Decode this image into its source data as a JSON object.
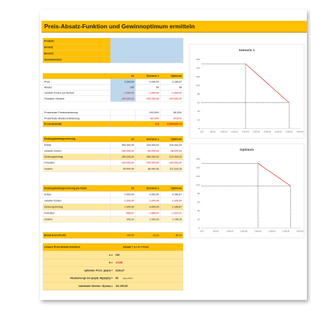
{
  "title": "Preis-Absatz-Funktion und Gewinnoptimum ermitteln",
  "info": {
    "labels": [
      "Produkt:",
      "Einheit:",
      "Bereich:",
      "Verantwortlich:"
    ]
  },
  "tables": [
    {
      "headers": [
        "Ist",
        "Szenario 1",
        "Optimum"
      ],
      "rows": [
        {
          "label": "Preis",
          "cells": [
            "2.000,00",
            "4.000,00",
            "3.166,67"
          ]
        },
        {
          "label": "Absatz",
          "cells": [
            "150",
            "60",
            "98"
          ]
        },
        {
          "label": "variable Kosten pro Einheit",
          "cells": [
            "-1.000,00",
            "-1.000,00",
            "-1.000,00"
          ]
        },
        {
          "label": "Fixkosten Gesamt",
          "cells": [
            "-100.000,00",
            "-100.000,00",
            "-100.000,00"
          ]
        },
        {
          "label": "Prozentuale Preisveränderung",
          "cells": [
            null,
            "100,00%",
            "58,33%"
          ]
        },
        {
          "label": "Prozentuale Absatzveränderung",
          "cells": [
            null,
            "-60,00%",
            "-34,67%"
          ]
        },
        {
          "label": "Preiselastizität",
          "cells": [
            null,
            "-0,6",
            "-0,594285714"
          ]
        }
      ]
    },
    {
      "label": "Deckungsbeitragsrechnung",
      "headers": [
        "Ist",
        "Szenario 1",
        "Optimum"
      ],
      "rows": [
        {
          "label": "Erlöse",
          "cells": [
            "300.000,00",
            "240.000,00",
            "310.333,33"
          ]
        },
        {
          "label": "variable Kosten",
          "cells": [
            "-150.000,00",
            "-60.000,00",
            "-98.000,00"
          ]
        },
        {
          "label": "Deckungsbeitrag",
          "cells": [
            "150.000,00",
            "180.000,00",
            "212.333,33"
          ]
        },
        {
          "label": "Fixkosten",
          "cells": [
            "-100.000,00",
            "-100.000,00",
            "-100.000,00"
          ]
        },
        {
          "label": "Gewinn",
          "cells": [
            "50.000,00",
            "80.000,00",
            "112.333,33"
          ]
        }
      ]
    },
    {
      "label": "Deckungsbeitragsrechnung pro Stück",
      "headers": [
        "Ist",
        "Szenario 1",
        "Optimum"
      ],
      "rows": [
        {
          "label": "Erlöse",
          "cells": [
            "2.000,00",
            "4.000,00",
            "3.166,67"
          ]
        },
        {
          "label": "variable Kosten",
          "cells": [
            "-1.000,00",
            "-1.000,00",
            "-1.000,00"
          ]
        },
        {
          "label": "Deckungsbeitrag",
          "cells": [
            "1.000,00",
            "3.000,00",
            "2.166,67"
          ]
        },
        {
          "label": "Fixkosten",
          "cells": [
            "-666,67",
            "-1.666,67",
            "-1.020,41"
          ]
        },
        {
          "label": "Gewinn",
          "cells": [
            "333,33",
            "1.333,33",
            "1.146,26"
          ]
        }
      ]
    }
  ],
  "break_even": {
    "label": "Break-Even-Punkt",
    "cells": [
      "100,00",
      "33,33",
      "46,15"
    ]
  },
  "formula": {
    "title": "Lineare Preis-Absatz-Funktion",
    "formula": "Absatz = a + b × Preis",
    "rows": [
      {
        "label": "a =",
        "value": "240"
      },
      {
        "label": "b =",
        "value": "-0,045"
      },
      {
        "label": "optimaler Preis: p(opt) =",
        "value": "3166,67"
      },
      {
        "label": "Absatzmenge bei p(opt): M(p(opt)) =",
        "value": "98",
        "note": "(gerundet)"
      },
      {
        "label": "maximaler Gewinn: G(max) =",
        "value": "111.250,00"
      }
    ]
  },
  "chart_data": [
    {
      "type": "line",
      "title": "Szenario 1",
      "x": [
        2000,
        4000
      ],
      "series": [
        {
          "color": "#e03c31",
          "values": [
            150,
            60
          ]
        }
      ],
      "xlim": [
        0,
        4500
      ],
      "xticks": [
        {
          "value": 0,
          "label": "0,00"
        },
        {
          "value": 500,
          "label": "500,00"
        },
        {
          "value": 1000,
          "label": "1.000,00"
        },
        {
          "value": 1500,
          "label": "1.500,00"
        },
        {
          "value": 2000,
          "label": "2.000,00"
        },
        {
          "value": 2500,
          "label": "2.500,00"
        },
        {
          "value": 3000,
          "label": "3.000,00"
        },
        {
          "value": 3500,
          "label": "3.500,00"
        },
        {
          "value": 4000,
          "label": "4.000,00"
        },
        {
          "value": 4500,
          "label": "4.500,00"
        }
      ],
      "ylim": [
        0,
        160
      ],
      "yticks": [
        0,
        20,
        40,
        60,
        80,
        100,
        120,
        140,
        160
      ],
      "grid": false
    },
    {
      "type": "line",
      "title": "Optimum",
      "x": [
        2000,
        3166.67
      ],
      "series": [
        {
          "color": "#e03c31",
          "values": [
            150,
            97.5
          ]
        }
      ],
      "xlim": [
        0,
        3500
      ],
      "xticks": [
        {
          "value": 0,
          "label": "0,00"
        },
        {
          "value": 500,
          "label": "500,00"
        },
        {
          "value": 1000,
          "label": "1.000,00"
        },
        {
          "value": 1500,
          "label": "1.500,00"
        },
        {
          "value": 2000,
          "label": "2.000,00"
        },
        {
          "value": 2500,
          "label": "2.500,00"
        },
        {
          "value": 3000,
          "label": "3.000,00"
        },
        {
          "value": 3500,
          "label": "3.500,00"
        }
      ],
      "ylim": [
        0,
        160
      ],
      "yticks": [
        0,
        20,
        40,
        60,
        80,
        100,
        120,
        140,
        160
      ],
      "grid": false
    }
  ]
}
